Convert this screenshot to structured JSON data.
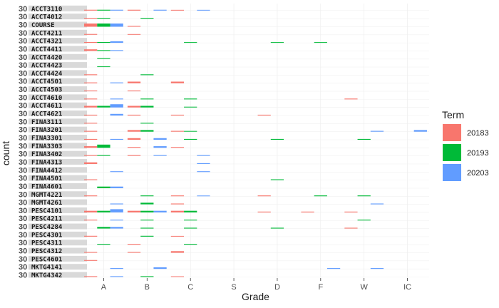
{
  "chart_data": {
    "type": "bar",
    "title": "",
    "xlabel": "Grade",
    "ylabel": "count",
    "x_categories": [
      "A",
      "B",
      "C",
      "S",
      "D",
      "F",
      "W",
      "IC"
    ],
    "y_tick_label": "30",
    "grid": true,
    "legend": {
      "title": "Term",
      "position": "right",
      "entries": [
        {
          "label": "20183",
          "color": "#F8766D"
        },
        {
          "label": "20193",
          "color": "#00BA38"
        },
        {
          "label": "20203",
          "color": "#619CFF"
        }
      ]
    },
    "panels": [
      {
        "label": "ACCT3110",
        "bars": [
          [
            "A",
            0,
            0.25
          ],
          [
            "A",
            1,
            0.25
          ],
          [
            "A",
            2,
            0.25
          ],
          [
            "B",
            0,
            0.25
          ],
          [
            "B",
            2,
            0.25
          ],
          [
            "C",
            0,
            0.1
          ],
          [
            "C",
            2,
            0.1
          ]
        ]
      },
      {
        "label": "ACCT4012",
        "bars": [
          [
            "A",
            0,
            0.25
          ],
          [
            "A",
            1,
            0.25
          ],
          [
            "B",
            1,
            0.25
          ]
        ]
      },
      {
        "label": "COURSE",
        "bars": [
          [
            "A",
            0,
            1.0
          ],
          [
            "A",
            1,
            1.0
          ],
          [
            "A",
            2,
            1.0
          ],
          [
            "B",
            0,
            0.25
          ]
        ]
      },
      {
        "label": "ACCT4211",
        "bars": [
          [
            "A",
            0,
            0.25
          ],
          [
            "B",
            0,
            0.1
          ]
        ]
      },
      {
        "label": "ACCT4321",
        "bars": [
          [
            "A",
            0,
            0.25
          ],
          [
            "A",
            1,
            0.25
          ],
          [
            "A",
            2,
            0.5
          ],
          [
            "C",
            1,
            0.1
          ],
          [
            "D",
            1,
            0.05
          ],
          [
            "F",
            1,
            0.05
          ]
        ]
      },
      {
        "label": "ACCT4411",
        "bars": [
          [
            "A",
            0,
            0.5
          ],
          [
            "A",
            1,
            0.25
          ],
          [
            "A",
            2,
            0.25
          ]
        ]
      },
      {
        "label": "ACCT4420",
        "bars": [
          [
            "A",
            1,
            0.25
          ]
        ]
      },
      {
        "label": "ACCT4423",
        "bars": [
          [
            "A",
            1,
            0.1
          ]
        ]
      },
      {
        "label": "ACCT4424",
        "bars": [
          [
            "A",
            0,
            0.25
          ],
          [
            "B",
            1,
            0.25
          ]
        ]
      },
      {
        "label": "ACCT4501",
        "bars": [
          [
            "A",
            0,
            0.25
          ],
          [
            "A",
            2,
            0.25
          ],
          [
            "B",
            0,
            0.5
          ],
          [
            "C",
            0,
            0.5
          ]
        ]
      },
      {
        "label": "ACCT4503",
        "bars": [
          [
            "A",
            0,
            0.25
          ],
          [
            "B",
            0,
            0.25
          ]
        ]
      },
      {
        "label": "ACCT4610",
        "bars": [
          [
            "A",
            0,
            0.25
          ],
          [
            "A",
            2,
            0.25
          ],
          [
            "B",
            1,
            0.25
          ],
          [
            "C",
            1,
            0.25
          ],
          [
            "W",
            0,
            0.25
          ]
        ]
      },
      {
        "label": "ACCT4611",
        "bars": [
          [
            "A",
            0,
            0.5
          ],
          [
            "A",
            1,
            0.5
          ],
          [
            "A",
            2,
            1.0
          ],
          [
            "B",
            0,
            0.5
          ],
          [
            "B",
            1,
            0.5
          ],
          [
            "C",
            1,
            0.1
          ]
        ]
      },
      {
        "label": "ACCT4621",
        "bars": [
          [
            "A",
            0,
            0.25
          ],
          [
            "A",
            2,
            0.5
          ],
          [
            "B",
            0,
            0.25
          ],
          [
            "C",
            0,
            0.25
          ],
          [
            "D",
            0,
            0.25
          ]
        ]
      },
      {
        "label": "FINA3111",
        "bars": [
          [
            "A",
            0,
            0.25
          ],
          [
            "B",
            1,
            0.25
          ]
        ]
      },
      {
        "label": "FINA3201",
        "bars": [
          [
            "A",
            0,
            0.25
          ],
          [
            "B",
            0,
            0.5
          ],
          [
            "B",
            1,
            0.5
          ],
          [
            "C",
            0,
            0.25
          ],
          [
            "C",
            1,
            0.1
          ],
          [
            "W",
            2,
            0.25
          ],
          [
            "IC",
            2,
            0.5
          ]
        ]
      },
      {
        "label": "FINA3301",
        "bars": [
          [
            "A",
            0,
            0.25
          ],
          [
            "A",
            2,
            0.25
          ],
          [
            "B",
            0,
            0.5
          ],
          [
            "B",
            2,
            0.5
          ],
          [
            "C",
            1,
            0.25
          ],
          [
            "D",
            1,
            0.25
          ],
          [
            "W",
            1,
            0.25
          ]
        ]
      },
      {
        "label": "FINA3303",
        "bars": [
          [
            "A",
            0,
            0.5
          ],
          [
            "A",
            1,
            1.0
          ],
          [
            "B",
            0,
            0.25
          ],
          [
            "B",
            2,
            0.5
          ],
          [
            "C",
            0,
            0.25
          ]
        ]
      },
      {
        "label": "FINA3402",
        "bars": [
          [
            "A",
            0,
            0.25
          ],
          [
            "A",
            1,
            0.25
          ],
          [
            "B",
            0,
            0.25
          ],
          [
            "B",
            2,
            0.25
          ],
          [
            "C",
            2,
            0.25
          ]
        ]
      },
      {
        "label": "FINA4313",
        "bars": [
          [
            "A",
            0,
            0.5
          ],
          [
            "C",
            2,
            0.25
          ]
        ]
      },
      {
        "label": "FINA4412",
        "bars": [
          [
            "A",
            2,
            0.25
          ],
          [
            "C",
            2,
            0.25
          ]
        ]
      },
      {
        "label": "FINA4501",
        "bars": [
          [
            "A",
            0,
            0.25
          ],
          [
            "D",
            1,
            0.25
          ]
        ]
      },
      {
        "label": "FINA4601",
        "bars": [
          [
            "A",
            1,
            0.5
          ],
          [
            "A",
            2,
            0.5
          ]
        ]
      },
      {
        "label": "MGMT4221",
        "bars": [
          [
            "A",
            0,
            0.25
          ],
          [
            "B",
            1,
            0.25
          ],
          [
            "C",
            0,
            0.25
          ],
          [
            "C",
            2,
            0.1
          ],
          [
            "D",
            0,
            0.25
          ],
          [
            "F",
            1,
            0.25
          ],
          [
            "W",
            1,
            0.25
          ]
        ]
      },
      {
        "label": "MGMT4261",
        "bars": [
          [
            "A",
            2,
            0.25
          ],
          [
            "B",
            1,
            0.5
          ],
          [
            "C",
            0,
            0.25
          ],
          [
            "W",
            2,
            0.25
          ]
        ]
      },
      {
        "label": "PESC4101",
        "bars": [
          [
            "A",
            0,
            0.5
          ],
          [
            "A",
            1,
            0.5
          ],
          [
            "A",
            2,
            1.0
          ],
          [
            "B",
            0,
            0.5
          ],
          [
            "B",
            1,
            0.5
          ],
          [
            "B",
            2,
            0.5
          ],
          [
            "C",
            0,
            0.5
          ],
          [
            "C",
            1,
            0.5
          ],
          [
            "D",
            0,
            0.25
          ],
          [
            "F",
            0,
            0.25
          ],
          [
            "W",
            0,
            0.25
          ]
        ]
      },
      {
        "label": "PESC4211",
        "bars": [
          [
            "A",
            0,
            0.25
          ],
          [
            "A",
            2,
            0.25
          ],
          [
            "B",
            1,
            0.25
          ],
          [
            "C",
            1,
            0.25
          ],
          [
            "W",
            1,
            0.25
          ]
        ]
      },
      {
        "label": "PESC4284",
        "bars": [
          [
            "A",
            1,
            0.5
          ],
          [
            "A",
            2,
            0.5
          ],
          [
            "B",
            1,
            0.25
          ],
          [
            "C",
            1,
            0.25
          ],
          [
            "D",
            1,
            0.25
          ],
          [
            "W",
            0,
            0.25
          ]
        ]
      },
      {
        "label": "PESC4301",
        "bars": [
          [
            "A",
            0,
            0.25
          ],
          [
            "B",
            1,
            0.25
          ],
          [
            "C",
            0,
            0.1
          ]
        ]
      },
      {
        "label": "PESC4311",
        "bars": [
          [
            "A",
            1,
            0.25
          ],
          [
            "B",
            0,
            0.25
          ],
          [
            "C",
            1,
            0.25
          ]
        ]
      },
      {
        "label": "PESC4312",
        "bars": [
          [
            "A",
            0,
            0.25
          ],
          [
            "B",
            0,
            0.25
          ],
          [
            "C",
            0,
            0.5
          ]
        ]
      },
      {
        "label": "PESC4601",
        "bars": [
          [
            "A",
            0,
            0.25
          ]
        ]
      },
      {
        "label": "MKTG4141",
        "bars": [
          [
            "A",
            2,
            0.25
          ],
          [
            "B",
            2,
            0.5
          ],
          [
            "F",
            2,
            0.25
          ],
          [
            "W",
            2,
            0.25
          ]
        ]
      },
      {
        "label": "MKTG4342",
        "bars": [
          [
            "A",
            0,
            0.25
          ],
          [
            "A",
            2,
            0.25
          ],
          [
            "B",
            1,
            0.25
          ],
          [
            "C",
            0,
            0.1
          ]
        ]
      }
    ]
  }
}
